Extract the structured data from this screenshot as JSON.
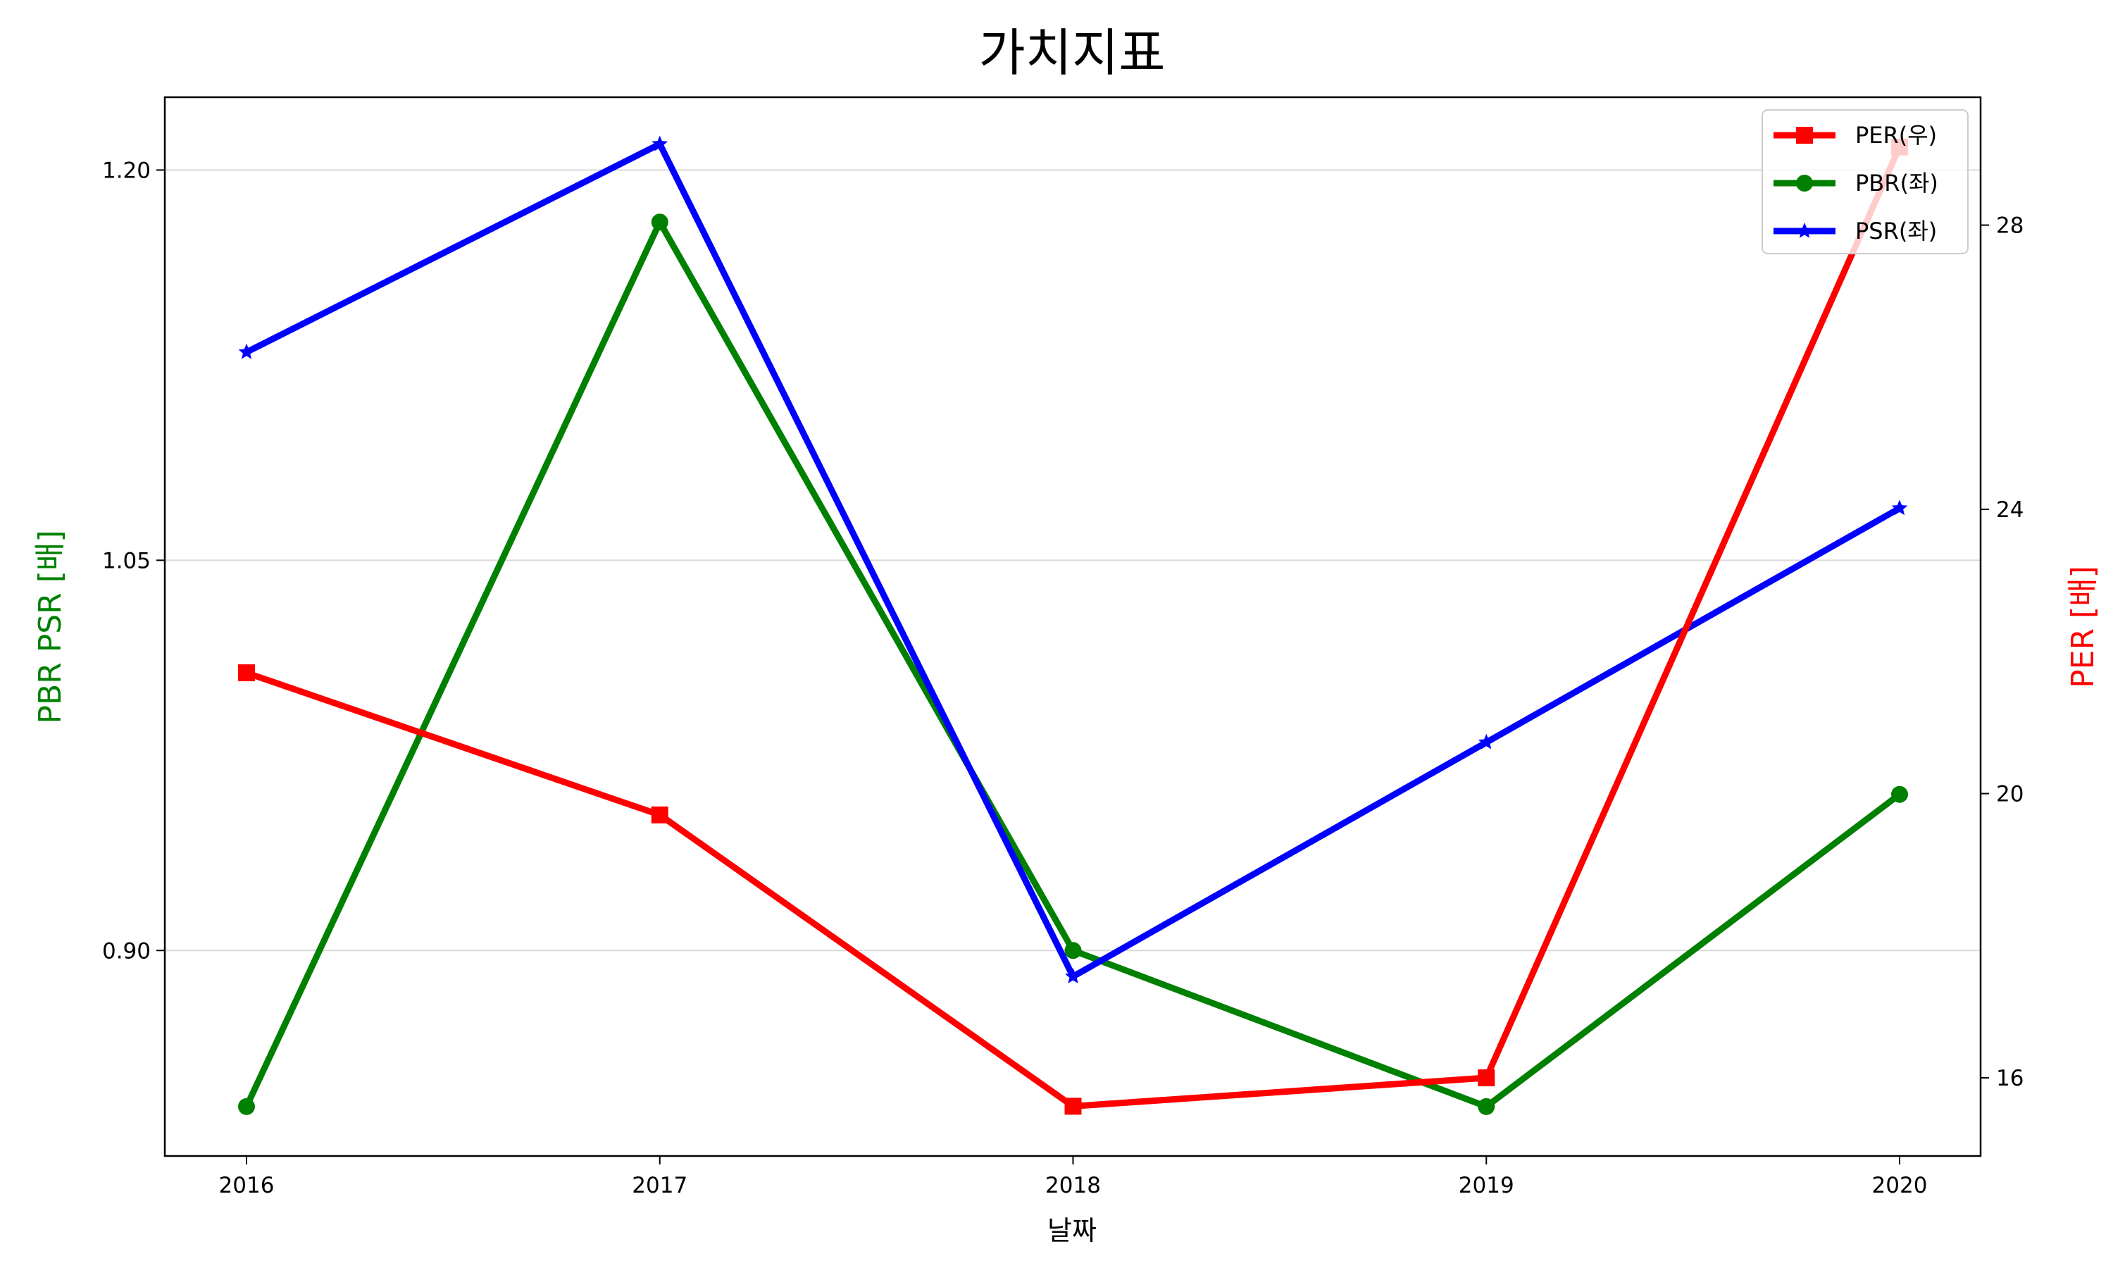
{
  "chart_data": {
    "type": "line",
    "title": "가치지표",
    "xlabel": "날짜",
    "ylabel_left": "PBR PSR [배]",
    "ylabel_right": "PER [배]",
    "categories": [
      "2016",
      "2017",
      "2018",
      "2019",
      "2020"
    ],
    "left_axis": {
      "ylim": [
        0.821,
        1.228
      ],
      "ticks": [
        "0.90",
        "1.05",
        "1.20"
      ],
      "tick_values": [
        0.9,
        1.05,
        1.2
      ]
    },
    "right_axis": {
      "ylim": [
        14.9,
        29.8
      ],
      "ticks": [
        "16",
        "20",
        "24",
        "28"
      ],
      "tick_values": [
        16,
        20,
        24,
        28
      ]
    },
    "grid": "horizontal",
    "legend_position": "top-right",
    "series": [
      {
        "name": "PER(우)",
        "axis": "right",
        "color": "#ff0000",
        "marker": "square",
        "values": [
          21.7,
          19.7,
          15.6,
          16.0,
          29.1
        ]
      },
      {
        "name": "PBR(좌)",
        "axis": "left",
        "color": "#008000",
        "marker": "circle",
        "values": [
          0.84,
          1.18,
          0.9,
          0.84,
          0.96
        ]
      },
      {
        "name": "PSR(좌)",
        "axis": "left",
        "color": "#0000ff",
        "marker": "star",
        "values": [
          1.13,
          1.21,
          0.89,
          0.98,
          1.07
        ]
      }
    ]
  }
}
